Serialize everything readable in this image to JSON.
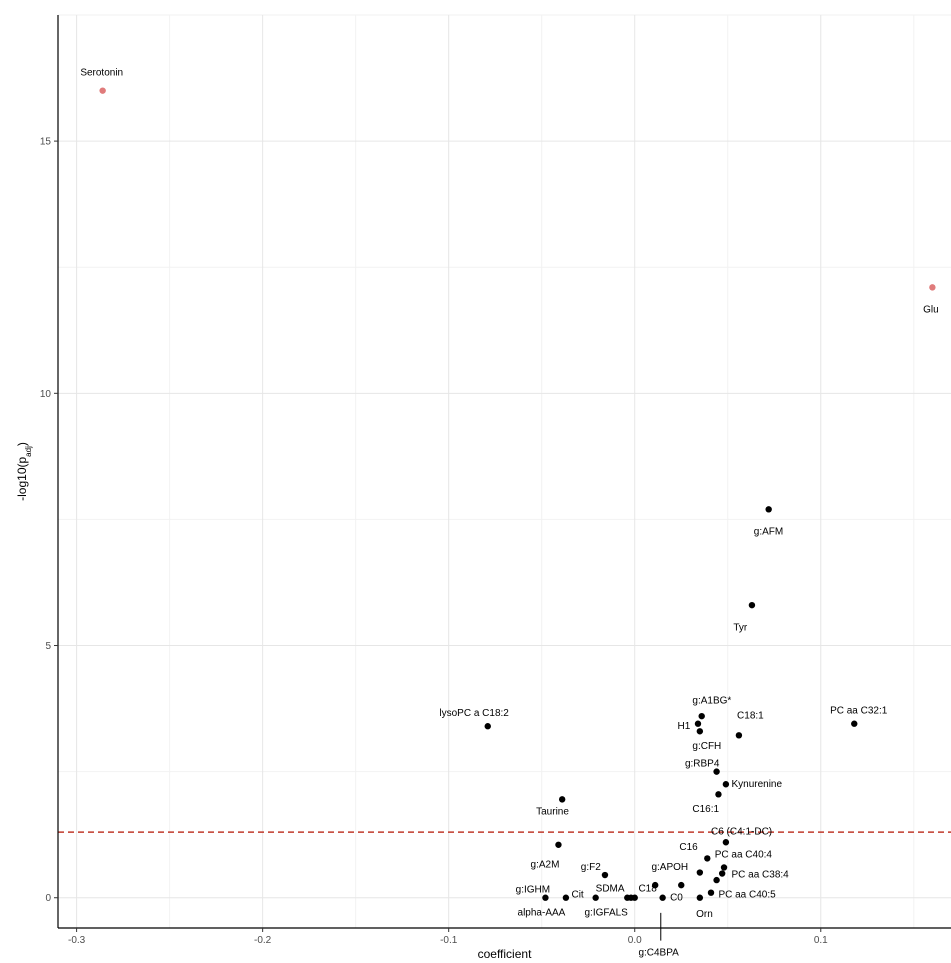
{
  "chart_data": {
    "type": "scatter",
    "xlabel": "coefficient",
    "ylabel": "-log10(p",
    "ylabel_sub": "adj",
    "ylabel_close": ")",
    "xlim": [
      -0.31,
      0.17
    ],
    "ylim": [
      -0.6,
      17.5
    ],
    "x_ticks": [
      -0.3,
      -0.2,
      -0.1,
      0.0,
      0.1
    ],
    "x_tick_labels": [
      "-0.3",
      "-0.2",
      "-0.1",
      "0.0",
      "0.1"
    ],
    "y_ticks": [
      0,
      5,
      10,
      15
    ],
    "y_tick_labels": [
      "0",
      "5",
      "10",
      "15"
    ],
    "grid": true,
    "threshold_y": 1.3,
    "threshold_color": "#c0392b",
    "colors": {
      "significant": "#e07b7b",
      "normal": "#000000"
    },
    "points": [
      {
        "label": "Serotonin",
        "x": -0.286,
        "y": 16.0,
        "highlight": true
      },
      {
        "label": "Glu",
        "x": 0.16,
        "y": 12.1,
        "highlight": true
      },
      {
        "label": "g:AFM",
        "x": 0.072,
        "y": 7.7
      },
      {
        "label": "Tyr",
        "x": 0.063,
        "y": 5.8
      },
      {
        "label": "PC aa C32:1",
        "x": 0.118,
        "y": 3.45
      },
      {
        "label": "lysoPC a C18:2",
        "x": -0.079,
        "y": 3.4
      },
      {
        "label": "g:A1BG*",
        "x": 0.036,
        "y": 3.6
      },
      {
        "label": "H1",
        "x": 0.034,
        "y": 3.45
      },
      {
        "label": "g:CFH",
        "x": 0.035,
        "y": 3.3
      },
      {
        "label": "C18:1",
        "x": 0.056,
        "y": 3.22
      },
      {
        "label": "g:RBP4",
        "x": 0.044,
        "y": 2.5
      },
      {
        "label": "Kynurenine",
        "x": 0.049,
        "y": 2.25
      },
      {
        "label": "C16:1",
        "x": 0.045,
        "y": 2.05
      },
      {
        "label": "Taurine",
        "x": -0.039,
        "y": 1.95
      },
      {
        "label": "C6 (C4:1-DC)",
        "x": 0.049,
        "y": 1.1
      },
      {
        "label": "g:A2M",
        "x": -0.041,
        "y": 1.05
      },
      {
        "label": "C16",
        "x": 0.039,
        "y": 0.78
      },
      {
        "label": "PC aa C40:4",
        "x": 0.048,
        "y": 0.6
      },
      {
        "label": "g:APOH",
        "x": 0.035,
        "y": 0.5
      },
      {
        "label": "PC aa C38:4",
        "x": 0.047,
        "y": 0.48
      },
      {
        "label": "g:F2",
        "x": -0.016,
        "y": 0.45
      },
      {
        "label": "PC aa C40:5",
        "x": 0.041,
        "y": 0.1
      },
      {
        "label": "PC aa C40:5",
        "x": 0.044,
        "y": 0.35
      },
      {
        "label": "C18",
        "x": 0.011,
        "y": 0.25
      },
      {
        "label": "SDMA",
        "x": -0.004,
        "y": 0.0
      },
      {
        "label": "C0",
        "x": 0.025,
        "y": 0.25
      },
      {
        "label": "Orn",
        "x": 0.035,
        "y": 0.0
      },
      {
        "label": "g:IGHM",
        "x": -0.048,
        "y": 0.0
      },
      {
        "label": "Cit",
        "x": -0.037,
        "y": 0.0
      },
      {
        "label": "alpha-AAA",
        "x": -0.021,
        "y": 0.0
      },
      {
        "label": "g:IGFALS",
        "x": -0.002,
        "y": 0.0
      },
      {
        "label": "g:C4BPA",
        "x": 0.0,
        "y": 0.0
      },
      {
        "label": "g:C4BPA",
        "x": 0.015,
        "y": 0.0
      }
    ],
    "text_labels": [
      {
        "text": "Serotonin",
        "x": -0.298,
        "y": 16.3,
        "anchor": "start"
      },
      {
        "text": "Glu",
        "x": 0.155,
        "y": 11.6,
        "anchor": "start"
      },
      {
        "text": "g:AFM",
        "x": 0.064,
        "y": 7.2,
        "anchor": "start"
      },
      {
        "text": "Tyr",
        "x": 0.053,
        "y": 5.3,
        "anchor": "start"
      },
      {
        "text": "PC aa C32:1",
        "x": 0.105,
        "y": 3.65,
        "anchor": "start"
      },
      {
        "text": "lysoPC a C18:2",
        "x": -0.105,
        "y": 3.6,
        "anchor": "start"
      },
      {
        "text": "g:A1BG*",
        "x": 0.031,
        "y": 3.85,
        "anchor": "start"
      },
      {
        "text": "H1",
        "x": 0.023,
        "y": 3.35,
        "anchor": "start"
      },
      {
        "text": "g:CFH",
        "x": 0.031,
        "y": 2.95,
        "anchor": "start"
      },
      {
        "text": "C18:1",
        "x": 0.055,
        "y": 3.55,
        "anchor": "start"
      },
      {
        "text": "g:RBP4",
        "x": 0.027,
        "y": 2.6,
        "anchor": "start"
      },
      {
        "text": "Kynurenine",
        "x": 0.052,
        "y": 2.2,
        "anchor": "start"
      },
      {
        "text": "C16:1",
        "x": 0.031,
        "y": 1.7,
        "anchor": "start"
      },
      {
        "text": "Taurine",
        "x": -0.053,
        "y": 1.65,
        "anchor": "start"
      },
      {
        "text": "C6 (C4:1-DC)",
        "x": 0.041,
        "y": 1.25,
        "anchor": "start"
      },
      {
        "text": "g:A2M",
        "x": -0.056,
        "y": 0.6,
        "anchor": "start"
      },
      {
        "text": "C16",
        "x": 0.024,
        "y": 0.95,
        "anchor": "start"
      },
      {
        "text": "PC aa C40:4",
        "x": 0.043,
        "y": 0.8,
        "anchor": "start"
      },
      {
        "text": "g:APOH",
        "x": 0.009,
        "y": 0.55,
        "anchor": "start"
      },
      {
        "text": "PC aa C38:4",
        "x": 0.052,
        "y": 0.4,
        "anchor": "start"
      },
      {
        "text": "g:F2",
        "x": -0.029,
        "y": 0.55,
        "anchor": "start"
      },
      {
        "text": "SDMA",
        "x": -0.021,
        "y": 0.12,
        "anchor": "start"
      },
      {
        "text": "C18",
        "x": 0.002,
        "y": 0.12,
        "anchor": "start"
      },
      {
        "text": "C0",
        "x": 0.019,
        "y": -0.05,
        "anchor": "start"
      },
      {
        "text": "Orn",
        "x": 0.033,
        "y": -0.38,
        "anchor": "start"
      },
      {
        "text": "PC aa C40:5",
        "x": 0.045,
        "y": 0.0,
        "anchor": "start"
      },
      {
        "text": "g:IGHM",
        "x": -0.064,
        "y": 0.1,
        "anchor": "start"
      },
      {
        "text": "Cit",
        "x": -0.034,
        "y": 0.0,
        "anchor": "start"
      },
      {
        "text": "alpha-AAA",
        "x": -0.063,
        "y": -0.35,
        "anchor": "start"
      },
      {
        "text": "g:IGFALS",
        "x": -0.027,
        "y": -0.35,
        "anchor": "start"
      },
      {
        "text": "g:C4BPA",
        "x": 0.002,
        "y": -1.15,
        "anchor": "start"
      }
    ]
  }
}
